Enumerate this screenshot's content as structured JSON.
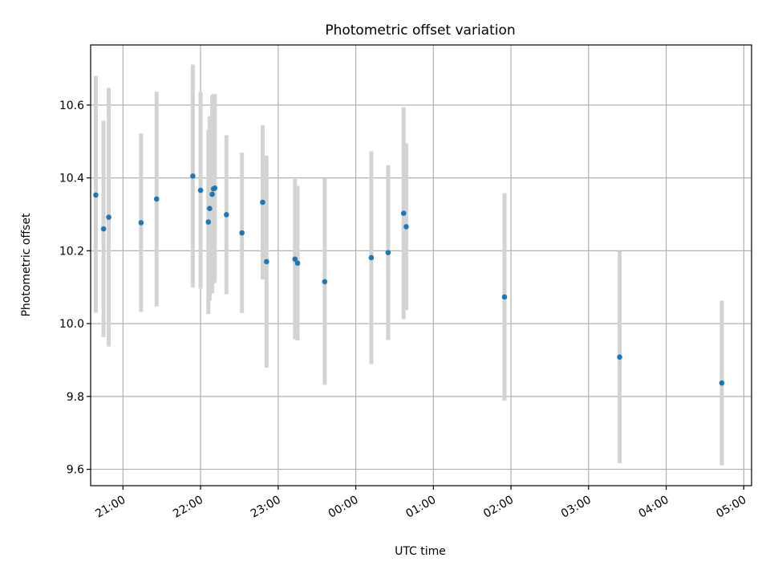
{
  "chart_data": {
    "type": "scatter",
    "title": "Photometric offset variation",
    "xlabel": "UTC time",
    "ylabel": "Photometric offset",
    "xlim": [
      "20:35",
      "05:06"
    ],
    "ylim": [
      9.555,
      10.765
    ],
    "grid": true,
    "x_ticks": [
      "21:00",
      "22:00",
      "23:00",
      "00:00",
      "01:00",
      "02:00",
      "03:00",
      "04:00",
      "05:00"
    ],
    "y_ticks": [
      "9.6",
      "9.8",
      "10.0",
      "10.2",
      "10.4",
      "10.6"
    ],
    "colors": {
      "points": "#1f77b4",
      "error_bars": "#d3d3d3",
      "grid": "#b0b0b0"
    },
    "points": [
      {
        "x": "20:39",
        "y": 10.353,
        "err_low": 10.03,
        "err_high": 10.68
      },
      {
        "x": "20:45",
        "y": 10.26,
        "err_low": 9.963,
        "err_high": 10.557
      },
      {
        "x": "20:49",
        "y": 10.292,
        "err_low": 9.937,
        "err_high": 10.647
      },
      {
        "x": "21:14",
        "y": 10.277,
        "err_low": 10.032,
        "err_high": 10.522
      },
      {
        "x": "21:26",
        "y": 10.342,
        "err_low": 10.047,
        "err_high": 10.637
      },
      {
        "x": "21:54",
        "y": 10.405,
        "err_low": 10.099,
        "err_high": 10.711
      },
      {
        "x": "22:00",
        "y": 10.366,
        "err_low": 10.096,
        "err_high": 10.636
      },
      {
        "x": "22:06",
        "y": 10.279,
        "err_low": 10.026,
        "err_high": 10.532
      },
      {
        "x": "22:07",
        "y": 10.316,
        "err_low": 10.063,
        "err_high": 10.569
      },
      {
        "x": "22:09",
        "y": 10.355,
        "err_low": 10.083,
        "err_high": 10.627
      },
      {
        "x": "22:10",
        "y": 10.37,
        "err_low": 10.11,
        "err_high": 10.63
      },
      {
        "x": "22:11",
        "y": 10.372,
        "err_low": 10.114,
        "err_high": 10.63
      },
      {
        "x": "22:20",
        "y": 10.299,
        "err_low": 10.081,
        "err_high": 10.517
      },
      {
        "x": "22:32",
        "y": 10.249,
        "err_low": 10.029,
        "err_high": 10.469
      },
      {
        "x": "22:48",
        "y": 10.333,
        "err_low": 10.121,
        "err_high": 10.545
      },
      {
        "x": "22:51",
        "y": 10.17,
        "err_low": 9.879,
        "err_high": 10.461
      },
      {
        "x": "23:13",
        "y": 10.177,
        "err_low": 9.957,
        "err_high": 10.397
      },
      {
        "x": "23:15",
        "y": 10.166,
        "err_low": 9.954,
        "err_high": 10.378
      },
      {
        "x": "23:36",
        "y": 10.115,
        "err_low": 9.832,
        "err_high": 10.398
      },
      {
        "x": "00:12",
        "y": 10.181,
        "err_low": 9.889,
        "err_high": 10.473
      },
      {
        "x": "00:25",
        "y": 10.195,
        "err_low": 9.955,
        "err_high": 10.435
      },
      {
        "x": "00:37",
        "y": 10.303,
        "err_low": 10.012,
        "err_high": 10.594
      },
      {
        "x": "00:39",
        "y": 10.266,
        "err_low": 10.037,
        "err_high": 10.495
      },
      {
        "x": "01:55",
        "y": 10.073,
        "err_low": 9.788,
        "err_high": 10.358
      },
      {
        "x": "03:24",
        "y": 9.908,
        "err_low": 9.617,
        "err_high": 10.199
      },
      {
        "x": "04:43",
        "y": 9.837,
        "err_low": 9.611,
        "err_high": 10.063
      }
    ]
  }
}
